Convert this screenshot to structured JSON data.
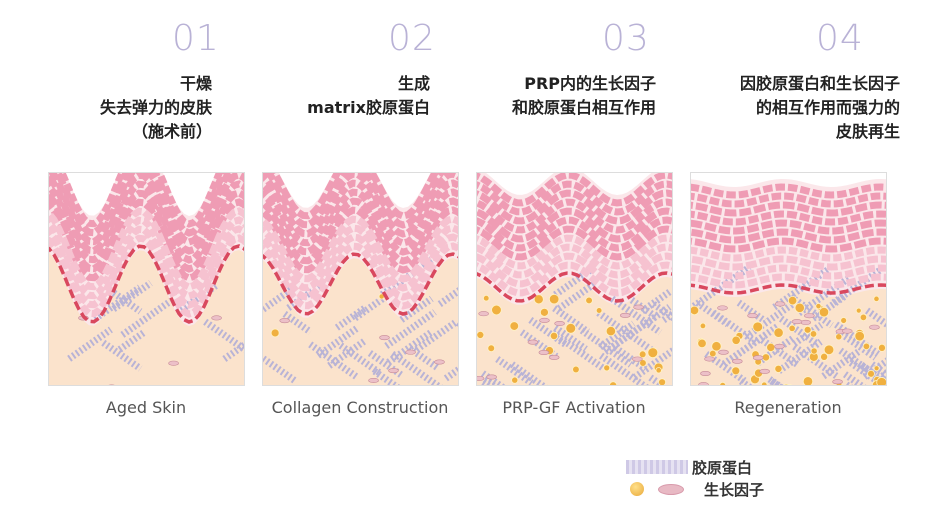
{
  "stages": [
    {
      "number": "01",
      "description": "干燥\n失去弹力的皮肤\n（施术前）",
      "caption": "Aged Skin"
    },
    {
      "number": "02",
      "description": "生成\nmatrix胶原蛋白",
      "caption": "Collagen Construction"
    },
    {
      "number": "03",
      "description": "PRP内的生长因子\n和胶原蛋白相互作用",
      "caption": "PRP-GF Activation"
    },
    {
      "number": "04",
      "description": "因胶原蛋白和生长因子\n的相互作用而强力的\n皮肤再生",
      "caption": "Regeneration"
    }
  ],
  "legend": [
    {
      "label": "胶原蛋白",
      "icon": "collagen-fiber-icon"
    },
    {
      "label": "生长因子",
      "icon": "growth-factor-icon"
    }
  ],
  "colors": {
    "number": "#b9b2d6",
    "epidermis": "#f0a0b8",
    "boundary": "#d9485e",
    "dermis": "#fbe3cc",
    "collagen": "#b8b3d6",
    "growth_factor": "#f0b040"
  }
}
